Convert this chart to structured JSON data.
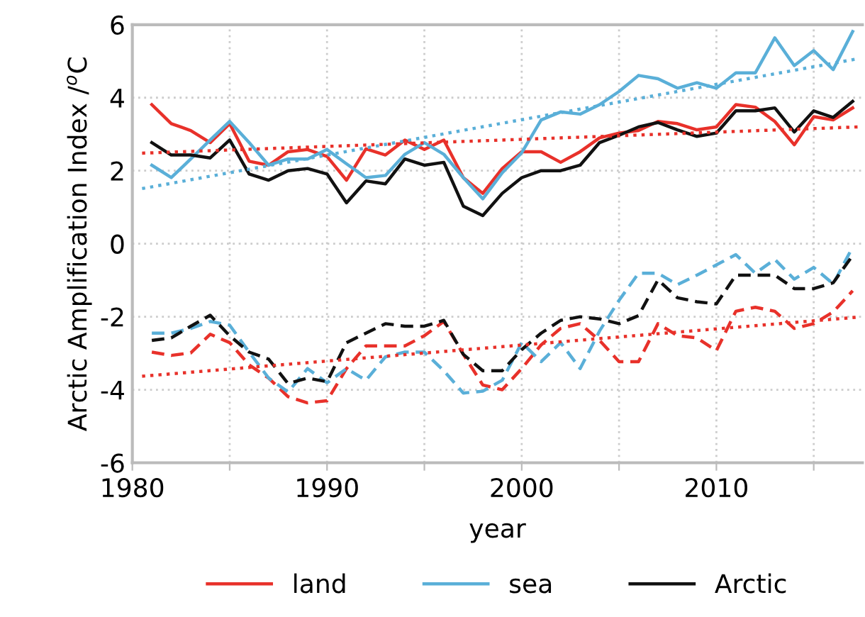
{
  "chart_data": {
    "type": "line",
    "xlabel": "year",
    "ylabel": "Arctic Amplification Index /$^{o}$C",
    "x": [
      1981,
      1982,
      1983,
      1984,
      1985,
      1986,
      1987,
      1988,
      1989,
      1990,
      1991,
      1992,
      1993,
      1994,
      1995,
      1996,
      1997,
      1998,
      1999,
      2000,
      2001,
      2002,
      2003,
      2004,
      2005,
      2006,
      2007,
      2008,
      2009,
      2010,
      2011,
      2012,
      2013,
      2014,
      2015,
      2016,
      2017
    ],
    "xlim": [
      1980,
      2017.5
    ],
    "xticks": [
      1980,
      {
        "value": 1985,
        "label": null
      },
      1990,
      {
        "value": 1995,
        "label": null
      },
      2000,
      {
        "value": 2005,
        "label": null
      },
      2010,
      {
        "value": 2015,
        "label": null
      }
    ],
    "ylim": [
      -6,
      6
    ],
    "yticks": [
      -6,
      -4,
      -2,
      0,
      2,
      4,
      6
    ],
    "grid": true,
    "legend": "bottom",
    "marker": "none",
    "series": [
      {
        "name": "land",
        "color": "#e8312a",
        "line_style": "solid",
        "values": [
          3.81,
          3.29,
          3.1,
          2.77,
          3.29,
          2.26,
          2.15,
          2.52,
          2.58,
          2.39,
          1.74,
          2.6,
          2.43,
          2.84,
          2.58,
          2.84,
          1.81,
          1.38,
          2.06,
          2.52,
          2.52,
          2.23,
          2.52,
          2.9,
          3.03,
          3.1,
          3.35,
          3.29,
          3.12,
          3.2,
          3.81,
          3.74,
          3.35,
          2.71,
          3.48,
          3.39,
          3.72
        ]
      },
      {
        "name": "sea",
        "color": "#5aafd8",
        "line_style": "solid",
        "values": [
          2.15,
          1.81,
          2.32,
          2.84,
          3.35,
          2.77,
          2.15,
          2.32,
          2.32,
          2.58,
          2.19,
          1.81,
          1.87,
          2.45,
          2.77,
          2.45,
          1.81,
          1.23,
          1.94,
          2.49,
          3.39,
          3.61,
          3.55,
          3.81,
          4.17,
          4.61,
          4.52,
          4.26,
          4.41,
          4.26,
          4.68,
          4.68,
          5.64,
          4.88,
          5.29,
          4.77,
          5.81
        ]
      },
      {
        "name": "Arctic",
        "color": "#111111",
        "line_style": "solid",
        "values": [
          2.77,
          2.43,
          2.43,
          2.35,
          2.84,
          1.91,
          1.74,
          2.0,
          2.06,
          1.91,
          1.12,
          1.72,
          1.64,
          2.32,
          2.15,
          2.23,
          1.03,
          0.77,
          1.38,
          1.81,
          2.0,
          2.0,
          2.15,
          2.77,
          2.97,
          3.2,
          3.32,
          3.12,
          2.94,
          3.03,
          3.64,
          3.64,
          3.72,
          3.06,
          3.64,
          3.46,
          3.9
        ]
      },
      {
        "color": "#e8312a",
        "line_style": "dashed",
        "values": [
          -2.97,
          -3.06,
          -2.99,
          -2.48,
          -2.71,
          -3.32,
          -3.68,
          -4.19,
          -4.36,
          -4.3,
          -3.42,
          -2.8,
          -2.8,
          -2.8,
          -2.52,
          -2.13,
          -3.03,
          -3.87,
          -4.0,
          -3.42,
          -2.77,
          -2.32,
          -2.19,
          -2.65,
          -3.23,
          -3.23,
          -2.19,
          -2.52,
          -2.58,
          -2.93,
          -1.85,
          -1.74,
          -1.85,
          -2.32,
          -2.19,
          -1.87,
          -1.29
        ]
      },
      {
        "color": "#5aafd8",
        "line_style": "dashed",
        "values": [
          -2.45,
          -2.45,
          -2.32,
          -2.13,
          -2.23,
          -2.97,
          -3.68,
          -4.06,
          -3.42,
          -3.81,
          -3.42,
          -3.74,
          -3.1,
          -2.97,
          -2.97,
          -3.48,
          -4.09,
          -4.04,
          -3.74,
          -2.71,
          -3.23,
          -2.71,
          -3.42,
          -2.39,
          -1.55,
          -0.81,
          -0.81,
          -1.12,
          -0.86,
          -0.58,
          -0.3,
          -0.81,
          -0.43,
          -0.97,
          -0.65,
          -1.1,
          -0.09
        ]
      },
      {
        "color": "#111111",
        "line_style": "dashed",
        "values": [
          -2.65,
          -2.58,
          -2.26,
          -1.96,
          -2.52,
          -2.97,
          -3.16,
          -3.83,
          -3.68,
          -3.78,
          -2.71,
          -2.45,
          -2.19,
          -2.26,
          -2.26,
          -2.1,
          -3.03,
          -3.48,
          -3.48,
          -2.9,
          -2.45,
          -2.1,
          -2.0,
          -2.06,
          -2.19,
          -1.97,
          -0.99,
          -1.48,
          -1.59,
          -1.65,
          -0.86,
          -0.86,
          -0.86,
          -1.23,
          -1.23,
          -1.07,
          -0.32
        ]
      },
      {
        "color": "#e8312a",
        "line_style": "dotted",
        "x": [
          1980.5,
          1999,
          2017.3
        ],
        "values": [
          2.48,
          2.84,
          3.2
        ]
      },
      {
        "color": "#5aafd8",
        "line_style": "dotted",
        "x": [
          1980.5,
          1999,
          2017.3
        ],
        "values": [
          1.51,
          3.3,
          5.07
        ]
      },
      {
        "color": "#e8312a",
        "line_style": "dotted",
        "x": [
          1980.5,
          1999,
          2017.3
        ],
        "values": [
          -3.63,
          -2.82,
          -2.01
        ]
      }
    ]
  }
}
